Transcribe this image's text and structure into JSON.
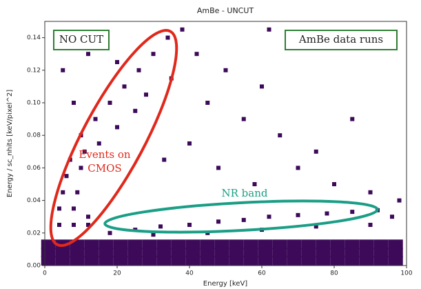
{
  "chart_data": {
    "type": "scatter",
    "title": "AmBe - UNCUT",
    "xlabel": "Energy [keV]",
    "ylabel": "Energy / sc_nhits [keV/pixel^2]",
    "xlim": [
      0,
      100
    ],
    "xticks": [
      0,
      20,
      40,
      60,
      80,
      100
    ],
    "ylim": [
      0,
      0.15
    ],
    "yticks": [
      {
        "value": 0,
        "label": "0.00"
      },
      {
        "value": 0.02,
        "label": "0.02"
      },
      {
        "value": 0.04,
        "label": "0.04"
      },
      {
        "value": 0.06,
        "label": "0.06"
      },
      {
        "value": 0.08,
        "label": "0.08"
      },
      {
        "value": 0.1,
        "label": "0.10"
      },
      {
        "value": 0.12,
        "label": "0.12"
      },
      {
        "value": 0.14,
        "label": "0.14"
      }
    ],
    "color": "#3d0a59",
    "annotations": [
      "NO CUT",
      "AmBe data runs",
      "Events on",
      "CMOS",
      "NR band"
    ],
    "x": [
      1,
      5,
      9,
      13,
      17,
      21,
      25,
      29,
      33,
      37,
      41,
      45,
      49,
      53,
      57,
      61,
      65,
      69,
      73,
      77,
      81,
      85,
      89,
      93,
      97,
      1,
      5,
      9,
      13,
      17,
      21,
      25,
      29,
      33,
      37,
      41,
      45,
      49,
      53,
      57,
      61,
      65,
      69,
      73,
      77,
      81,
      85,
      89,
      93,
      97,
      1,
      5,
      9,
      13,
      17,
      21,
      25,
      29,
      33,
      37,
      41,
      45,
      49,
      53,
      57,
      61,
      65,
      69,
      73,
      77,
      81,
      85,
      89,
      93,
      97,
      4,
      8,
      12,
      4,
      8,
      12,
      5,
      9,
      6,
      10,
      7,
      11,
      18,
      25,
      32,
      40,
      48,
      55,
      62,
      70,
      78,
      85,
      92,
      30,
      45,
      60,
      75,
      90,
      96,
      10,
      14,
      18,
      22,
      26,
      30,
      34,
      20,
      25,
      15,
      38,
      28,
      35,
      42,
      45,
      50,
      55,
      60,
      65,
      70,
      75,
      80,
      90,
      98,
      5,
      8,
      3,
      48,
      58,
      40,
      33,
      62,
      85,
      12,
      20
    ],
    "y": [
      0.003,
      0.003,
      0.003,
      0.003,
      0.003,
      0.003,
      0.003,
      0.003,
      0.003,
      0.003,
      0.003,
      0.003,
      0.003,
      0.003,
      0.003,
      0.003,
      0.003,
      0.003,
      0.003,
      0.003,
      0.003,
      0.003,
      0.003,
      0.003,
      0.003,
      0.008,
      0.008,
      0.008,
      0.008,
      0.008,
      0.008,
      0.008,
      0.008,
      0.008,
      0.008,
      0.008,
      0.008,
      0.008,
      0.008,
      0.008,
      0.008,
      0.008,
      0.008,
      0.008,
      0.008,
      0.008,
      0.008,
      0.008,
      0.008,
      0.008,
      0.013,
      0.013,
      0.013,
      0.013,
      0.013,
      0.013,
      0.013,
      0.013,
      0.013,
      0.013,
      0.013,
      0.013,
      0.013,
      0.013,
      0.013,
      0.013,
      0.013,
      0.013,
      0.013,
      0.013,
      0.013,
      0.013,
      0.013,
      0.013,
      0.013,
      0.025,
      0.025,
      0.025,
      0.035,
      0.035,
      0.03,
      0.045,
      0.045,
      0.055,
      0.06,
      0.065,
      0.07,
      0.02,
      0.022,
      0.024,
      0.025,
      0.027,
      0.028,
      0.03,
      0.031,
      0.032,
      0.033,
      0.034,
      0.019,
      0.02,
      0.022,
      0.024,
      0.025,
      0.03,
      0.08,
      0.09,
      0.1,
      0.11,
      0.12,
      0.13,
      0.14,
      0.085,
      0.095,
      0.075,
      0.145,
      0.105,
      0.115,
      0.13,
      0.1,
      0.12,
      0.09,
      0.11,
      0.08,
      0.06,
      0.07,
      0.05,
      0.045,
      0.04,
      0.12,
      0.1,
      0.14,
      0.06,
      0.05,
      0.075,
      0.065,
      0.145,
      0.09,
      0.13,
      0.125
    ]
  }
}
